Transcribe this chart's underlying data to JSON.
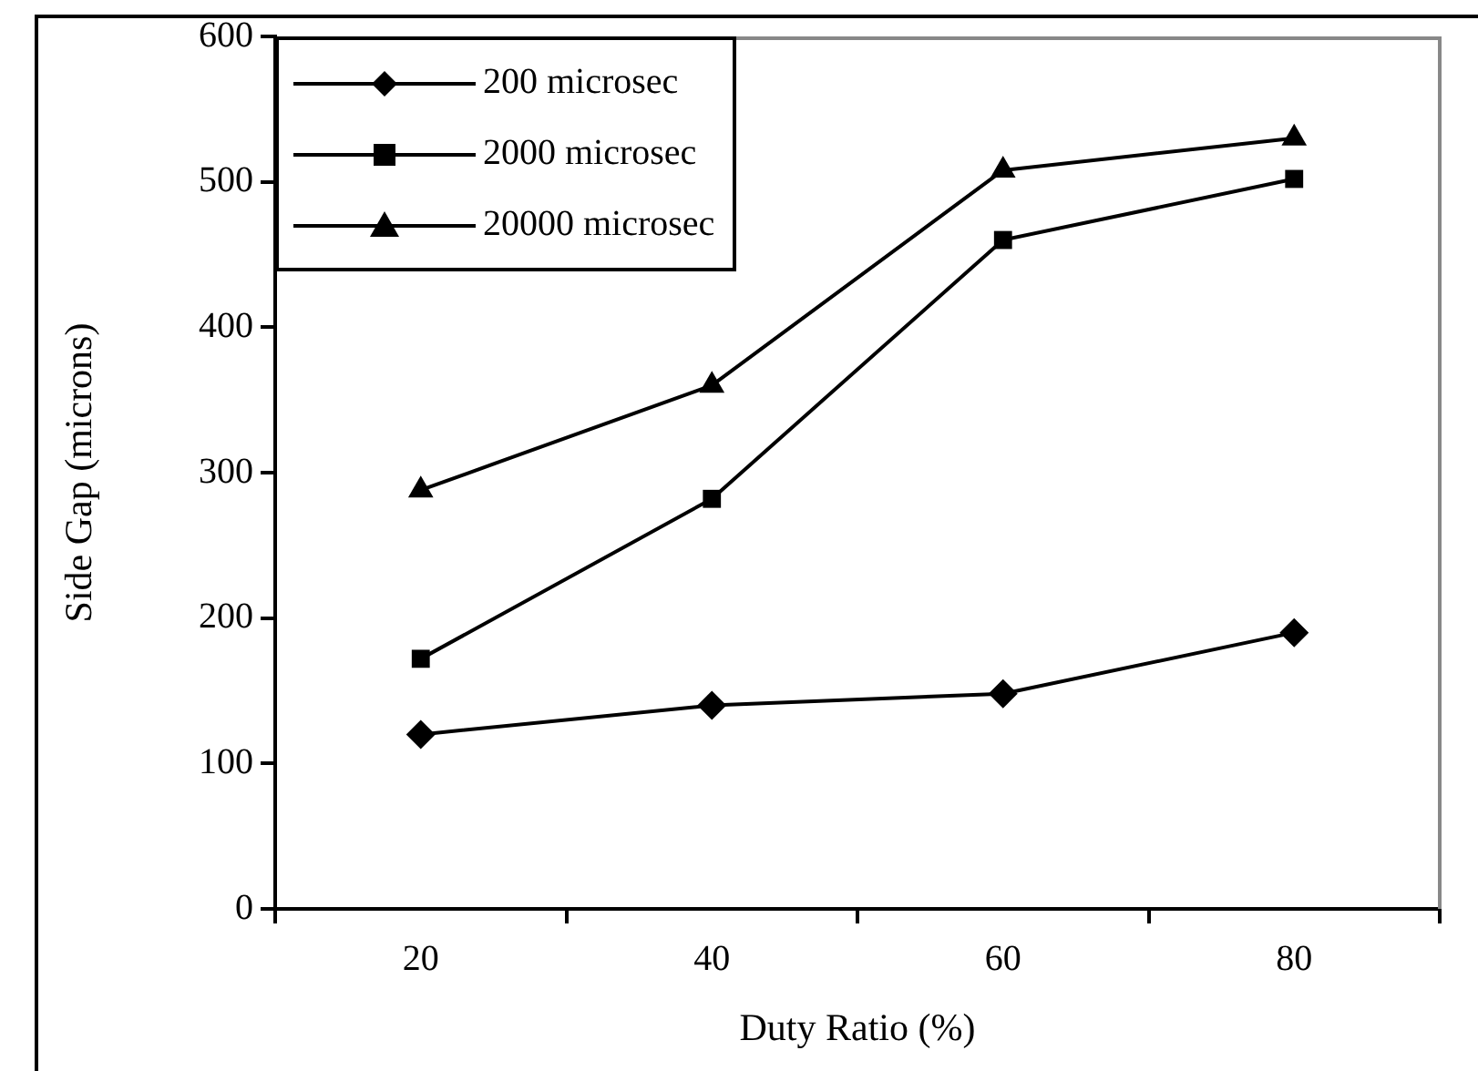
{
  "chart_data": {
    "type": "line",
    "xlabel": "Duty Ratio (%)",
    "ylabel": "Side Gap (microns)",
    "categories": [
      "20",
      "40",
      "60",
      "80"
    ],
    "series": [
      {
        "name": "200 microsec",
        "color": "#000000",
        "marker": "diamond",
        "values": [
          120,
          140,
          148,
          190
        ]
      },
      {
        "name": "2000 microsec",
        "color": "#000000",
        "marker": "square",
        "values": [
          172,
          282,
          460,
          502
        ]
      },
      {
        "name": "20000 microsec",
        "color": "#000000",
        "marker": "triangle",
        "values": [
          288,
          360,
          508,
          530
        ]
      }
    ],
    "ylim": [
      0,
      600
    ],
    "yticks": [
      0,
      100,
      200,
      300,
      400,
      500,
      600
    ],
    "grid": false,
    "legend": "top left",
    "line_style": "solid"
  }
}
